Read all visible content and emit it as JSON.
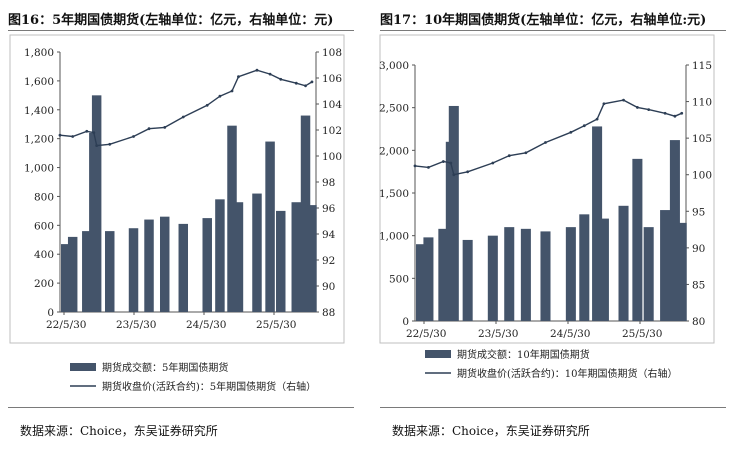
{
  "chart_data": [
    {
      "type": "bar",
      "title": "图16：5年期国债期货(左轴单位：亿元，右轴单位：元)",
      "x_ticks": [
        "22/5/30",
        "23/5/30",
        "24/5/30",
        "25/5/30"
      ],
      "left_axis": {
        "ylim": [
          0,
          1800
        ],
        "ticks": [
          "0",
          "200",
          "400",
          "600",
          "800",
          "1,000",
          "1,200",
          "1,400",
          "1,600",
          "1,800"
        ]
      },
      "right_axis": {
        "ylim": [
          88,
          108
        ],
        "ticks": [
          "88",
          "90",
          "92",
          "94",
          "96",
          "98",
          "100",
          "102",
          "104",
          "106",
          "108"
        ]
      },
      "legend": [
        {
          "label": "期货成交额：5年期国债期货",
          "kind": "bar",
          "color": "#44546a"
        },
        {
          "label": "期货收盘价(活跃合约)：5年期国债期货（右轴）",
          "kind": "line",
          "color": "#2d3e55"
        }
      ],
      "series": [
        {
          "kind": "bar",
          "axis": "left",
          "x": [
            "2022-05-30",
            "2022-08-01",
            "2022-10-10",
            "2022-11-14",
            "2022-11-28",
            "2023-02-01",
            "2023-05-30",
            "2023-08-15",
            "2023-11-01",
            "2024-02-01",
            "2024-05-30",
            "2024-08-01",
            "2024-09-30",
            "2024-11-01",
            "2025-02-01",
            "2025-04-07",
            "2025-05-30",
            "2025-08-15",
            "2025-09-30",
            "2025-11-01"
          ],
          "values": [
            470,
            520,
            560,
            1240,
            1500,
            560,
            580,
            640,
            660,
            610,
            650,
            780,
            1290,
            760,
            820,
            1180,
            700,
            760,
            1360,
            740
          ]
        },
        {
          "kind": "line",
          "axis": "right",
          "x": [
            "2022-05-30",
            "2022-08-01",
            "2022-10-10",
            "2022-11-14",
            "2022-11-28",
            "2023-02-01",
            "2023-05-30",
            "2023-08-15",
            "2023-11-01",
            "2024-02-01",
            "2024-05-30",
            "2024-08-01",
            "2024-09-30",
            "2024-11-01",
            "2025-02-01",
            "2025-04-07",
            "2025-05-30",
            "2025-08-15",
            "2025-09-30",
            "2025-11-01"
          ],
          "values": [
            101.6,
            101.5,
            101.9,
            101.8,
            100.8,
            100.9,
            101.5,
            102.1,
            102.2,
            103.0,
            103.9,
            104.6,
            105.0,
            106.1,
            106.6,
            106.3,
            105.9,
            105.6,
            105.4,
            105.7
          ]
        }
      ],
      "source": "数据来源：Choice，东吴证券研究所"
    },
    {
      "type": "bar",
      "title": "图17：10年期国债期货(左轴单位：亿元，右轴单位:元)",
      "x_ticks": [
        "22/5/30",
        "23/5/30",
        "24/5/30",
        "25/5/30"
      ],
      "left_axis": {
        "ylim": [
          0,
          3000
        ],
        "ticks": [
          "0",
          "500",
          "1,000",
          "1,500",
          "2,000",
          "2,500",
          "3,000"
        ]
      },
      "right_axis": {
        "ylim": [
          80,
          115
        ],
        "ticks": [
          "80",
          "85",
          "90",
          "95",
          "100",
          "105",
          "110",
          "115"
        ]
      },
      "legend": [
        {
          "label": "期货成交额：10年期国债期货",
          "kind": "bar",
          "color": "#44546a"
        },
        {
          "label": "期货收盘价(活跃合约)：10年期国债期货（右轴）",
          "kind": "line",
          "color": "#2d3e55"
        }
      ],
      "series": [
        {
          "kind": "bar",
          "axis": "left",
          "x": [
            "2022-05-30",
            "2022-08-01",
            "2022-10-10",
            "2022-11-14",
            "2022-11-28",
            "2023-02-01",
            "2023-05-30",
            "2023-08-15",
            "2023-11-01",
            "2024-02-01",
            "2024-05-30",
            "2024-08-01",
            "2024-09-30",
            "2024-11-01",
            "2025-02-01",
            "2025-04-07",
            "2025-05-30",
            "2025-08-15",
            "2025-09-30",
            "2025-11-01"
          ],
          "values": [
            900,
            980,
            1080,
            2100,
            2520,
            950,
            1000,
            1100,
            1080,
            1050,
            1100,
            1250,
            2280,
            1200,
            1350,
            1900,
            1100,
            1300,
            2120,
            1150
          ]
        },
        {
          "kind": "line",
          "axis": "right",
          "x": [
            "2022-05-30",
            "2022-08-01",
            "2022-10-10",
            "2022-11-14",
            "2022-11-28",
            "2023-02-01",
            "2023-05-30",
            "2023-08-15",
            "2023-11-01",
            "2024-02-01",
            "2024-05-30",
            "2024-08-01",
            "2024-09-30",
            "2024-11-01",
            "2025-02-01",
            "2025-04-07",
            "2025-05-30",
            "2025-08-15",
            "2025-09-30",
            "2025-11-01"
          ],
          "values": [
            101.2,
            101.0,
            101.8,
            101.6,
            100.0,
            100.4,
            101.6,
            102.6,
            103.0,
            104.4,
            105.8,
            106.7,
            107.6,
            109.7,
            110.2,
            109.2,
            108.9,
            108.4,
            108.0,
            108.4
          ]
        }
      ],
      "source": "数据来源：Choice，东吴证券研究所"
    }
  ]
}
